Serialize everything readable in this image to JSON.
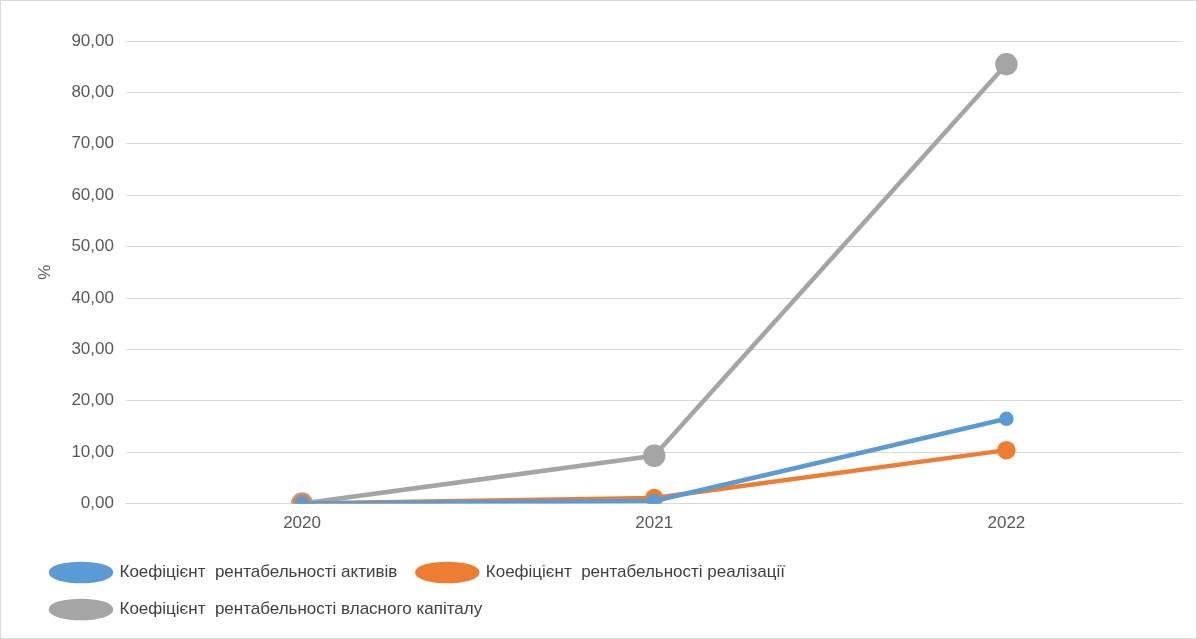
{
  "chart_data": {
    "type": "line",
    "ylabel": "%",
    "categories": [
      "2020",
      "2021",
      "2022"
    ],
    "series": [
      {
        "name": "Коефіцієнт  рентабельності активів",
        "color": "#5b9bd5",
        "values": [
          0,
          0.5,
          16.5
        ]
      },
      {
        "name": "Коефіцієнт  рентабельності реалізації",
        "color": "#ed7d31",
        "values": [
          0,
          1.1,
          10.4
        ]
      },
      {
        "name": "Коефіцієнт  рентабельності власного капіталу",
        "color": "#a5a5a5",
        "values": [
          0,
          9.3,
          85.5
        ]
      }
    ],
    "ylim": [
      0,
      90
    ],
    "yticks": [
      {
        "value": 0,
        "label": "0,00"
      },
      {
        "value": 10,
        "label": "10,00"
      },
      {
        "value": 20,
        "label": "20,00"
      },
      {
        "value": 30,
        "label": "30,00"
      },
      {
        "value": 40,
        "label": "40,00"
      },
      {
        "value": 50,
        "label": "50,00"
      },
      {
        "value": 60,
        "label": "60,00"
      },
      {
        "value": 70,
        "label": "70,00"
      },
      {
        "value": 80,
        "label": "80,00"
      },
      {
        "value": 90,
        "label": "90,00"
      }
    ],
    "grid": "y",
    "legend": "bottom",
    "marker": "circle",
    "line_style": "solid"
  }
}
